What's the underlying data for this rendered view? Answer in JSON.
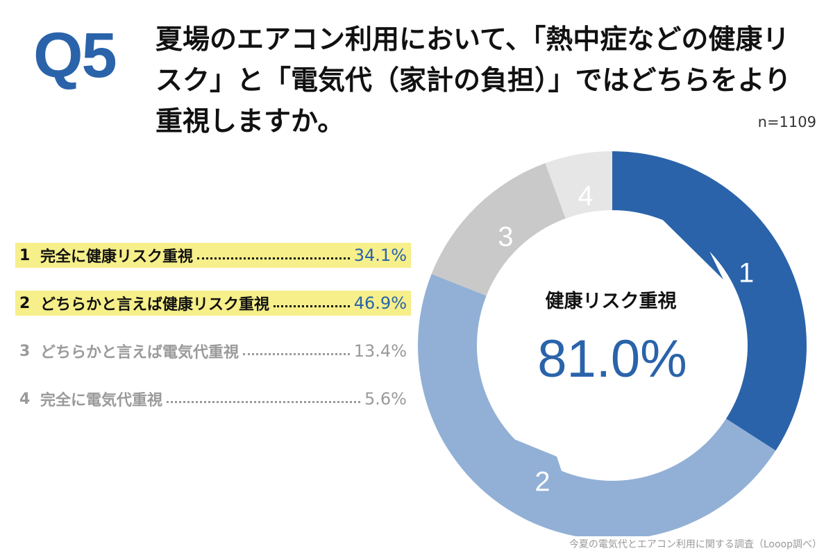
{
  "header": {
    "qnum": "Q5",
    "question": "夏場のエアコン利用において、「熱中症などの健康リスク」と「電気代（家計の負担）」ではどちらをより重視しますか。",
    "sample": "n=1109"
  },
  "legend": [
    {
      "num": "1",
      "label": "完全に健康リスク重視",
      "value": "34.1%"
    },
    {
      "num": "2",
      "label": "どちらかと言えば健康リスク重視",
      "value": "46.9%"
    },
    {
      "num": "3",
      "label": "どちらかと言えば電気代重視",
      "value": "13.4%"
    },
    {
      "num": "4",
      "label": "完全に電気代重視",
      "value": "5.6%"
    }
  ],
  "callout": {
    "label": "健康リスク重視",
    "value": "81.0%"
  },
  "source": "今夏の電気代とエアコン利用に関する調査（Looop調べ）",
  "colors": {
    "accent": "#2a63aa",
    "highlight": "#f6ef8a",
    "muted_text": "#9a9a9a"
  },
  "chart_data": {
    "type": "pie",
    "style": "donut",
    "categories": [
      "1",
      "2",
      "3",
      "4"
    ],
    "values": [
      34.1,
      46.9,
      13.4,
      5.6
    ],
    "colors": [
      "#2a63aa",
      "#92b0d6",
      "#c9c9c9",
      "#e6e6e6"
    ],
    "start": "12 o'clock",
    "direction": "clockwise"
  }
}
